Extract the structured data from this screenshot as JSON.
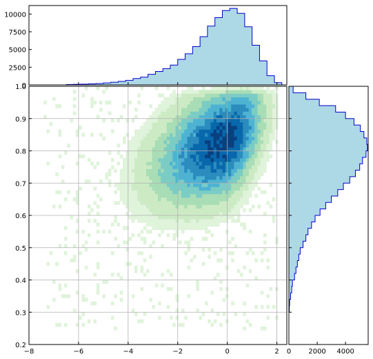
{
  "chart_data": [
    {
      "panel": "main",
      "type": "heatmap",
      "title": "",
      "xlabel": "",
      "ylabel": "",
      "xlim": [
        -8,
        2.4
      ],
      "ylim": [
        0.2,
        1.0
      ],
      "xticks": [
        -8,
        -6,
        -4,
        -2,
        0,
        2
      ],
      "xtick_labels": [
        "−8",
        "−6",
        "−4",
        "−2",
        "0",
        "2"
      ],
      "yticks": [
        0.2,
        0.3,
        0.4,
        0.5,
        0.6,
        0.7,
        0.8,
        0.9,
        1.0
      ],
      "ytick_labels": [
        "0.2",
        "0.3",
        "0.4",
        "0.5",
        "0.6",
        "0.7",
        "0.8",
        "0.9",
        "1.0"
      ],
      "grid": true,
      "colormap": [
        "#f7fcf0",
        "#e0f3db",
        "#ccebc5",
        "#a8ddb5",
        "#7bccc4",
        "#4eb3d3",
        "#2b8cbe",
        "#0868ac",
        "#084081"
      ],
      "density_model": {
        "x_mode": 0.0,
        "y_mode": 0.83,
        "x_sd_left": 1.55,
        "x_sd_right": 0.75,
        "y_sd": 0.1,
        "correlation": 0.45,
        "x_support": [
          -7.4,
          2.1
        ],
        "y_support": [
          0.25,
          1.0
        ]
      }
    },
    {
      "panel": "top-marginal",
      "type": "bar",
      "xlabel": "",
      "ylabel": "",
      "edge_color": "#0000cc",
      "fill_color": "#add8e6",
      "ylim": [
        0,
        11200
      ],
      "yticks": [
        0,
        2500,
        5000,
        7500,
        10000
      ],
      "ytick_labels": [
        "0",
        "2500",
        "5000",
        "7500",
        "10000"
      ],
      "bin_edges": [
        -6.5,
        -6.2,
        -5.9,
        -5.6,
        -5.3,
        -5.0,
        -4.7,
        -4.4,
        -4.1,
        -3.8,
        -3.5,
        -3.2,
        -2.9,
        -2.6,
        -2.3,
        -2.0,
        -1.7,
        -1.4,
        -1.1,
        -0.8,
        -0.5,
        -0.2,
        0.1,
        0.4,
        0.7,
        1.0,
        1.3,
        1.6,
        1.9,
        2.2
      ],
      "values": [
        60,
        80,
        110,
        150,
        200,
        280,
        380,
        500,
        650,
        900,
        1100,
        1500,
        1900,
        2300,
        2800,
        3600,
        4400,
        5400,
        6800,
        8300,
        9500,
        10500,
        10800,
        10100,
        8200,
        5600,
        3400,
        1300,
        320
      ]
    },
    {
      "panel": "right-marginal",
      "type": "bar",
      "orientation": "horizontal",
      "xlabel": "",
      "ylabel": "",
      "edge_color": "#0000cc",
      "fill_color": "#add8e6",
      "xlim": [
        0,
        5600
      ],
      "xticks": [
        0,
        2000,
        4000
      ],
      "xtick_labels": [
        "0",
        "2000",
        "4000"
      ],
      "bin_edges": [
        0.3,
        0.32,
        0.34,
        0.36,
        0.38,
        0.4,
        0.42,
        0.44,
        0.46,
        0.48,
        0.5,
        0.52,
        0.54,
        0.56,
        0.58,
        0.6,
        0.62,
        0.64,
        0.66,
        0.68,
        0.7,
        0.72,
        0.74,
        0.76,
        0.78,
        0.8,
        0.82,
        0.84,
        0.86,
        0.88,
        0.9,
        0.92,
        0.94,
        0.96,
        0.98,
        1.0
      ],
      "values": [
        30,
        50,
        120,
        200,
        250,
        400,
        500,
        600,
        700,
        800,
        1000,
        1200,
        1350,
        1600,
        1850,
        2200,
        2600,
        3000,
        3450,
        3850,
        4300,
        4700,
        5000,
        5200,
        5450,
        5550,
        5500,
        5300,
        5050,
        4600,
        4000,
        3300,
        2150,
        1200,
        300
      ]
    }
  ]
}
